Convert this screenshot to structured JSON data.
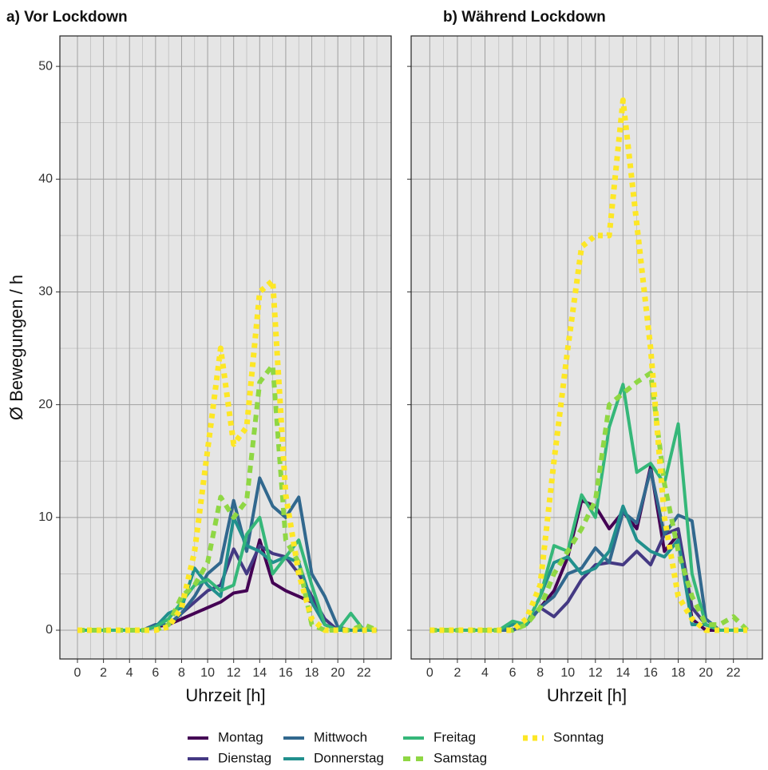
{
  "chart_data": [
    {
      "type": "line",
      "title": "a) Vor Lockdown",
      "xlabel": "Uhrzeit [h]",
      "ylabel": "Ø Bewegungen / h",
      "x": [
        0,
        1,
        2,
        3,
        4,
        5,
        6,
        7,
        8,
        9,
        10,
        11,
        12,
        13,
        14,
        15,
        16,
        17,
        18,
        19,
        20,
        21,
        22,
        23
      ],
      "xlim": [
        -1.35,
        24.1
      ],
      "ylim": [
        -2.55,
        52.7
      ],
      "xticks": [
        0,
        2,
        4,
        6,
        8,
        10,
        12,
        14,
        16,
        18,
        20,
        22
      ],
      "minor_xticks": [
        1,
        3,
        5,
        7,
        9,
        11,
        13,
        15,
        17,
        19,
        21,
        23
      ],
      "yticks": [
        0,
        10,
        20,
        30,
        40,
        50
      ],
      "minor_yticks": [
        5,
        15,
        25,
        35,
        45
      ],
      "grid": true,
      "series": [
        {
          "name": "Montag",
          "color": "#440154",
          "dash": "solid",
          "values": [
            0,
            0,
            0,
            0,
            0,
            0,
            0.3,
            0.5,
            1,
            1.5,
            2,
            2.5,
            3.3,
            3.5,
            8,
            4.2,
            3.5,
            3,
            2.5,
            0.5,
            0,
            0,
            0,
            0
          ]
        },
        {
          "name": "Dienstag",
          "color": "#443983",
          "dash": "solid",
          "values": [
            0,
            0,
            0,
            0,
            0,
            0,
            0.5,
            0.5,
            1.5,
            2.5,
            3.5,
            4,
            7.2,
            5,
            7.5,
            6.8,
            6.5,
            5,
            3,
            1,
            0,
            0,
            0,
            0
          ]
        },
        {
          "name": "Mittwoch",
          "color": "#31688e",
          "dash": "solid",
          "values": [
            0,
            0,
            0,
            0,
            0,
            0,
            0.5,
            0.5,
            1.5,
            3,
            5,
            6,
            11.5,
            7,
            13.5,
            11,
            10,
            11.8,
            5,
            3,
            0.3,
            0,
            0,
            0
          ]
        },
        {
          "name": "Donnerstag",
          "color": "#21908d",
          "dash": "solid",
          "values": [
            0,
            0,
            0,
            0,
            0,
            0,
            0.3,
            1.5,
            2,
            5.5,
            4,
            3,
            10,
            7.5,
            7,
            6,
            6.5,
            6,
            2.5,
            0.5,
            0,
            0,
            0,
            0
          ]
        },
        {
          "name": "Freitag",
          "color": "#35b779",
          "dash": "solid",
          "values": [
            0,
            0,
            0,
            0,
            0,
            0,
            0.3,
            1,
            2.5,
            4,
            4.5,
            3.5,
            4,
            8.5,
            10,
            5,
            6.5,
            8,
            4,
            0.5,
            0,
            1.5,
            0,
            0
          ]
        },
        {
          "name": "Samstag",
          "color": "#8fd744",
          "dash": "dashed",
          "values": [
            0,
            0,
            0,
            0,
            0,
            0,
            0,
            0.5,
            3,
            4,
            6,
            11.8,
            10,
            11.5,
            22,
            23.5,
            8,
            6,
            0.5,
            0,
            0,
            0,
            0.5,
            0
          ]
        },
        {
          "name": "Sonntag",
          "color": "#fde725",
          "dash": "dotted",
          "values": [
            0,
            0,
            0,
            0,
            0,
            0,
            0,
            0.3,
            2,
            7,
            16,
            25,
            16.5,
            18,
            30,
            31,
            12,
            5,
            1,
            0,
            0,
            0,
            0,
            0
          ]
        }
      ]
    },
    {
      "type": "line",
      "title": "b) Während Lockdown",
      "xlabel": "Uhrzeit [h]",
      "x": [
        0,
        1,
        2,
        3,
        4,
        5,
        6,
        7,
        8,
        9,
        10,
        11,
        12,
        13,
        14,
        15,
        16,
        17,
        18,
        19,
        20,
        21,
        22,
        23
      ],
      "xlim": [
        -1.35,
        24.1
      ],
      "ylim": [
        -2.55,
        52.7
      ],
      "xticks": [
        0,
        2,
        4,
        6,
        8,
        10,
        12,
        14,
        16,
        18,
        20,
        22
      ],
      "minor_xticks": [
        1,
        3,
        5,
        7,
        9,
        11,
        13,
        15,
        17,
        19,
        21,
        23
      ],
      "yticks": [
        0,
        10,
        20,
        30,
        40,
        50
      ],
      "minor_yticks": [
        5,
        15,
        25,
        35,
        45
      ],
      "grid": true,
      "series": [
        {
          "color": "#440154",
          "dash": "solid",
          "values": [
            0,
            0,
            0,
            0,
            0,
            0,
            0,
            0.5,
            2,
            3.5,
            6.5,
            11.5,
            11,
            9,
            10.5,
            9,
            14.5,
            7,
            8.5,
            1,
            0,
            0,
            0,
            0
          ]
        },
        {
          "color": "#443983",
          "dash": "solid",
          "values": [
            0,
            0,
            0,
            0,
            0,
            0,
            0,
            0.5,
            2,
            1.2,
            2.5,
            4.5,
            5.8,
            6,
            5.8,
            7,
            5.8,
            8.5,
            9,
            2,
            0.5,
            0,
            0,
            0
          ]
        },
        {
          "color": "#31688e",
          "dash": "solid",
          "values": [
            0,
            0,
            0,
            0,
            0,
            0,
            0,
            0.5,
            2,
            3,
            5,
            5.5,
            7.3,
            6,
            10.5,
            9.5,
            14.2,
            8.5,
            10.2,
            9.7,
            1,
            0,
            0,
            0
          ]
        },
        {
          "color": "#21908d",
          "dash": "solid",
          "values": [
            0,
            0,
            0,
            0,
            0,
            0,
            0.5,
            0.5,
            3,
            6,
            6.5,
            5,
            5.5,
            7,
            11,
            8,
            7,
            6.5,
            8,
            0.5,
            0.5,
            0,
            0,
            0
          ]
        },
        {
          "color": "#35b779",
          "dash": "solid",
          "values": [
            0,
            0,
            0,
            0,
            0,
            0,
            0.8,
            0.5,
            3,
            7.5,
            7,
            12,
            10,
            18,
            21.8,
            14,
            14.8,
            13,
            18.3,
            5,
            0.5,
            0,
            0,
            0
          ]
        },
        {
          "color": "#8fd744",
          "dash": "dashed",
          "values": [
            0,
            0,
            0,
            0,
            0,
            0,
            0,
            0.5,
            2,
            5,
            7,
            9,
            11.5,
            20,
            21,
            22,
            22.8,
            13,
            7,
            3,
            0.5,
            0.5,
            1.2,
            0
          ]
        },
        {
          "color": "#fde725",
          "dash": "dotted",
          "values": [
            0,
            0,
            0,
            0,
            0,
            0,
            0,
            1,
            4,
            15,
            25,
            34,
            35,
            35,
            47,
            36,
            25,
            10,
            3,
            1,
            0,
            0,
            0,
            0
          ]
        }
      ]
    }
  ]
}
